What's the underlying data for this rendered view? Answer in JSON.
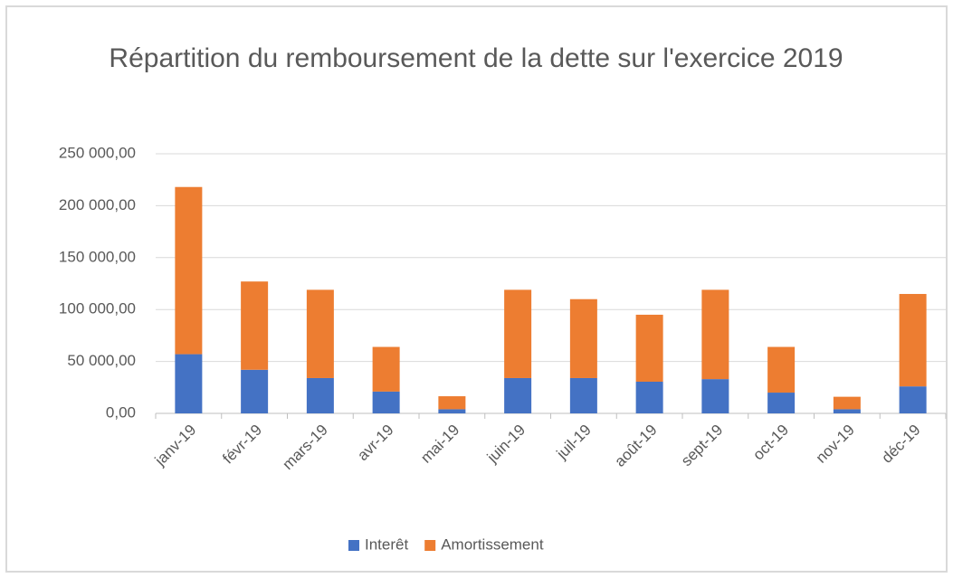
{
  "chart_data": {
    "type": "stacked_bar",
    "title": "Répartition du remboursement de la dette sur l'exercice 2019",
    "categories": [
      "janv-19",
      "févr-19",
      "mars-19",
      "avr-19",
      "mai-19",
      "juin-19",
      "juil-19",
      "août-19",
      "sept-19",
      "oct-19",
      "nov-19",
      "déc-19"
    ],
    "series": [
      {
        "name": "Interêt",
        "color": "#4472c4",
        "values": [
          57000,
          42000,
          34000,
          21000,
          4000,
          34000,
          34000,
          30500,
          33000,
          20000,
          4000,
          26000
        ]
      },
      {
        "name": "Amortissement",
        "color": "#ed7d31",
        "values": [
          161000,
          85000,
          85000,
          43000,
          12500,
          85000,
          76000,
          64500,
          86000,
          44000,
          12000,
          89000
        ]
      }
    ],
    "ylim": [
      0,
      250000
    ],
    "yticks": [
      {
        "value": 0,
        "label": "0,00"
      },
      {
        "value": 50000,
        "label": "50 000,00"
      },
      {
        "value": 100000,
        "label": "100 000,00"
      },
      {
        "value": 150000,
        "label": "150 000,00"
      },
      {
        "value": 200000,
        "label": "200 000,00"
      },
      {
        "value": 250000,
        "label": "250 000,00"
      }
    ],
    "grid": true,
    "legend": "bottom"
  }
}
